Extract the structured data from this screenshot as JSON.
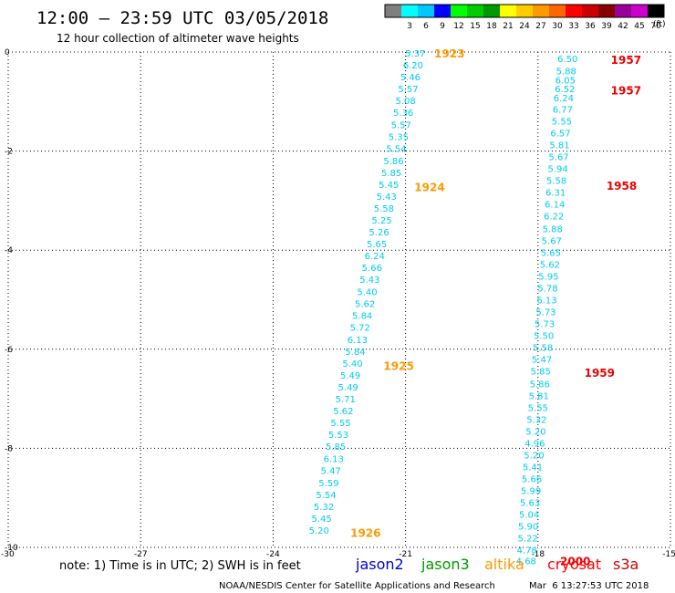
{
  "header": {
    "title": "12:00 – 23:59 UTC 03/05/2018",
    "subtitle": "12 hour collection of altimeter wave heights",
    "units_label": "(ft)"
  },
  "color_scale": {
    "bins": [
      {
        "label": "",
        "color": "#7f7f7f"
      },
      {
        "label": "3",
        "color": "#00ffff"
      },
      {
        "label": "6",
        "color": "#00c8ff"
      },
      {
        "label": "9",
        "color": "#0000ff"
      },
      {
        "label": "12",
        "color": "#00ff00"
      },
      {
        "label": "15",
        "color": "#00cc00"
      },
      {
        "label": "18",
        "color": "#009900"
      },
      {
        "label": "21",
        "color": "#ffff00"
      },
      {
        "label": "24",
        "color": "#ffcc00"
      },
      {
        "label": "27",
        "color": "#ff9900"
      },
      {
        "label": "30",
        "color": "#ff6600"
      },
      {
        "label": "33",
        "color": "#ff0000"
      },
      {
        "label": "36",
        "color": "#cc0000"
      },
      {
        "label": "39",
        "color": "#880000"
      },
      {
        "label": "42",
        "color": "#990099"
      },
      {
        "label": "45",
        "color": "#cc00cc"
      },
      {
        "label": "70",
        "color": "#000000"
      }
    ]
  },
  "legend": {
    "note": "note: 1) Time is in UTC; 2) SWH is in feet",
    "items": [
      {
        "name": "jason2",
        "color": "#0000cc"
      },
      {
        "name": "jason3",
        "color": "#009900"
      },
      {
        "name": "altika",
        "color": "#ff9900"
      },
      {
        "name": "cryosat",
        "color": "#ff0000"
      },
      {
        "name": "s3a",
        "color": "#cc0000"
      }
    ]
  },
  "footer": {
    "credit": "NOAA/NESDIS Center for Satellite Applications and Research",
    "timestamp": "Mar  6 13:27:53 UTC 2018"
  },
  "colors": {
    "value_text": "#00ccee",
    "time_altika": "#ff9900",
    "time_cryosat": "#ee0000",
    "grid": "#000000"
  },
  "chart_data": {
    "type": "scatter",
    "xlim": [
      -30,
      -15
    ],
    "ylim": [
      -10,
      0
    ],
    "xticks": [
      "-30",
      "-27",
      "-24",
      "-21",
      "-18",
      "-15"
    ],
    "yticks": [
      "0",
      "-2",
      "-4",
      "-6",
      "-8",
      "-10"
    ],
    "grid": true,
    "tracks": [
      {
        "satellite": "altika",
        "values": [
          {
            "x": -20.55,
            "y": -0.02,
            "v": "5.37"
          },
          {
            "x": -20.6,
            "y": -0.26,
            "v": "6.20"
          },
          {
            "x": -20.66,
            "y": -0.5,
            "v": "5.46"
          },
          {
            "x": -20.71,
            "y": -0.74,
            "v": "5.57"
          },
          {
            "x": -20.77,
            "y": -0.98,
            "v": "5.08"
          },
          {
            "x": -20.82,
            "y": -1.22,
            "v": "5.36"
          },
          {
            "x": -20.87,
            "y": -1.46,
            "v": "5.57"
          },
          {
            "x": -20.93,
            "y": -1.7,
            "v": "5.35"
          },
          {
            "x": -20.98,
            "y": -1.94,
            "v": "5.54"
          },
          {
            "x": -21.04,
            "y": -2.19,
            "v": "5.86"
          },
          {
            "x": -21.09,
            "y": -2.43,
            "v": "5.85"
          },
          {
            "x": -21.15,
            "y": -2.67,
            "v": "5.45"
          },
          {
            "x": -21.2,
            "y": -2.91,
            "v": "5.43"
          },
          {
            "x": -21.26,
            "y": -3.15,
            "v": "5.58"
          },
          {
            "x": -21.31,
            "y": -3.39,
            "v": "5.25"
          },
          {
            "x": -21.37,
            "y": -3.63,
            "v": "5.26"
          },
          {
            "x": -21.42,
            "y": -3.87,
            "v": "5.65"
          },
          {
            "x": -21.47,
            "y": -4.11,
            "v": "6.24"
          },
          {
            "x": -21.53,
            "y": -4.35,
            "v": "5.66"
          },
          {
            "x": -21.58,
            "y": -4.59,
            "v": "5.43"
          },
          {
            "x": -21.64,
            "y": -4.83,
            "v": "5.40"
          },
          {
            "x": -21.69,
            "y": -5.07,
            "v": "5.62"
          },
          {
            "x": -21.75,
            "y": -5.31,
            "v": "5.84"
          },
          {
            "x": -21.8,
            "y": -5.55,
            "v": "5.72"
          },
          {
            "x": -21.86,
            "y": -5.8,
            "v": "6.13"
          },
          {
            "x": -21.91,
            "y": -6.04,
            "v": "5.84"
          },
          {
            "x": -21.97,
            "y": -6.28,
            "v": "5.40"
          },
          {
            "x": -22.02,
            "y": -6.52,
            "v": "5.49"
          },
          {
            "x": -22.07,
            "y": -6.76,
            "v": "5.49"
          },
          {
            "x": -22.13,
            "y": -7.0,
            "v": "5.71"
          },
          {
            "x": -22.18,
            "y": -7.24,
            "v": "5.62"
          },
          {
            "x": -22.24,
            "y": -7.48,
            "v": "5.55"
          },
          {
            "x": -22.29,
            "y": -7.72,
            "v": "5.53"
          },
          {
            "x": -22.35,
            "y": -7.96,
            "v": "5.85"
          },
          {
            "x": -22.4,
            "y": -8.2,
            "v": "6.13"
          },
          {
            "x": -22.46,
            "y": -8.44,
            "v": "5.47"
          },
          {
            "x": -22.51,
            "y": -8.69,
            "v": "5.59"
          },
          {
            "x": -22.57,
            "y": -8.93,
            "v": "5.54"
          },
          {
            "x": -22.62,
            "y": -9.17,
            "v": "5.32"
          },
          {
            "x": -22.67,
            "y": -9.41,
            "v": "5.45"
          },
          {
            "x": -22.73,
            "y": -9.65,
            "v": "5.20"
          }
        ],
        "times": [
          {
            "x": -20.35,
            "y": -0.02,
            "t": "1923"
          },
          {
            "x": -20.8,
            "y": -2.72,
            "t": "1924"
          },
          {
            "x": -21.5,
            "y": -6.33,
            "t": "1925"
          },
          {
            "x": -22.25,
            "y": -9.7,
            "t": "1926"
          }
        ]
      },
      {
        "satellite": "cryosat",
        "values": [
          {
            "x": -17.1,
            "y": -0.13,
            "v": "6.50"
          },
          {
            "x": -17.13,
            "y": -0.38,
            "v": "5.88"
          },
          {
            "x": -17.15,
            "y": -0.56,
            "v": "6.05"
          },
          {
            "x": -17.16,
            "y": -0.74,
            "v": "6.52"
          },
          {
            "x": -17.19,
            "y": -0.92,
            "v": "6.24"
          },
          {
            "x": -17.21,
            "y": -1.15,
            "v": "6.77"
          },
          {
            "x": -17.23,
            "y": -1.39,
            "v": "5.55"
          },
          {
            "x": -17.26,
            "y": -1.63,
            "v": "6.57"
          },
          {
            "x": -17.28,
            "y": -1.87,
            "v": "5.81"
          },
          {
            "x": -17.3,
            "y": -2.11,
            "v": "5.67"
          },
          {
            "x": -17.32,
            "y": -2.35,
            "v": "5.94"
          },
          {
            "x": -17.35,
            "y": -2.59,
            "v": "5.58"
          },
          {
            "x": -17.37,
            "y": -2.83,
            "v": "6.31"
          },
          {
            "x": -17.39,
            "y": -3.07,
            "v": "6.14"
          },
          {
            "x": -17.41,
            "y": -3.31,
            "v": "6.22"
          },
          {
            "x": -17.44,
            "y": -3.56,
            "v": "5.88"
          },
          {
            "x": -17.46,
            "y": -3.8,
            "v": "5.67"
          },
          {
            "x": -17.48,
            "y": -4.04,
            "v": "5.65"
          },
          {
            "x": -17.5,
            "y": -4.28,
            "v": "5.62"
          },
          {
            "x": -17.53,
            "y": -4.52,
            "v": "5.95"
          },
          {
            "x": -17.55,
            "y": -4.76,
            "v": "5.78"
          },
          {
            "x": -17.57,
            "y": -5.0,
            "v": "6.13"
          },
          {
            "x": -17.59,
            "y": -5.24,
            "v": "5.73"
          },
          {
            "x": -17.62,
            "y": -5.48,
            "v": "5.73"
          },
          {
            "x": -17.64,
            "y": -5.72,
            "v": "5.50"
          },
          {
            "x": -17.66,
            "y": -5.96,
            "v": "5.58"
          },
          {
            "x": -17.68,
            "y": -6.2,
            "v": "5.47"
          },
          {
            "x": -17.71,
            "y": -6.44,
            "v": "5.85"
          },
          {
            "x": -17.73,
            "y": -6.69,
            "v": "5.86"
          },
          {
            "x": -17.75,
            "y": -6.93,
            "v": "5.81"
          },
          {
            "x": -17.77,
            "y": -7.17,
            "v": "5.55"
          },
          {
            "x": -17.8,
            "y": -7.41,
            "v": "5.32"
          },
          {
            "x": -17.82,
            "y": -7.65,
            "v": "5.20"
          },
          {
            "x": -17.84,
            "y": -7.89,
            "v": "4.96"
          },
          {
            "x": -17.86,
            "y": -8.13,
            "v": "5.20"
          },
          {
            "x": -17.89,
            "y": -8.37,
            "v": "5.41"
          },
          {
            "x": -17.91,
            "y": -8.61,
            "v": "5.66"
          },
          {
            "x": -17.93,
            "y": -8.85,
            "v": "5.99"
          },
          {
            "x": -17.95,
            "y": -9.09,
            "v": "5.63"
          },
          {
            "x": -17.97,
            "y": -9.33,
            "v": "5.04"
          },
          {
            "x": -17.99,
            "y": -9.57,
            "v": "5.90"
          },
          {
            "x": -18.0,
            "y": -9.81,
            "v": "5.22"
          },
          {
            "x": -18.02,
            "y": -10.05,
            "v": "4.78"
          },
          {
            "x": -18.04,
            "y": -10.27,
            "v": "4.68"
          }
        ],
        "times": [
          {
            "x": -16.35,
            "y": -0.15,
            "t": "1957"
          },
          {
            "x": -16.35,
            "y": -0.76,
            "t": "1957"
          },
          {
            "x": -16.45,
            "y": -2.69,
            "t": "1958"
          },
          {
            "x": -16.95,
            "y": -6.46,
            "t": "1959"
          },
          {
            "x": -17.5,
            "y": -10.27,
            "t": "2000"
          }
        ]
      }
    ]
  }
}
